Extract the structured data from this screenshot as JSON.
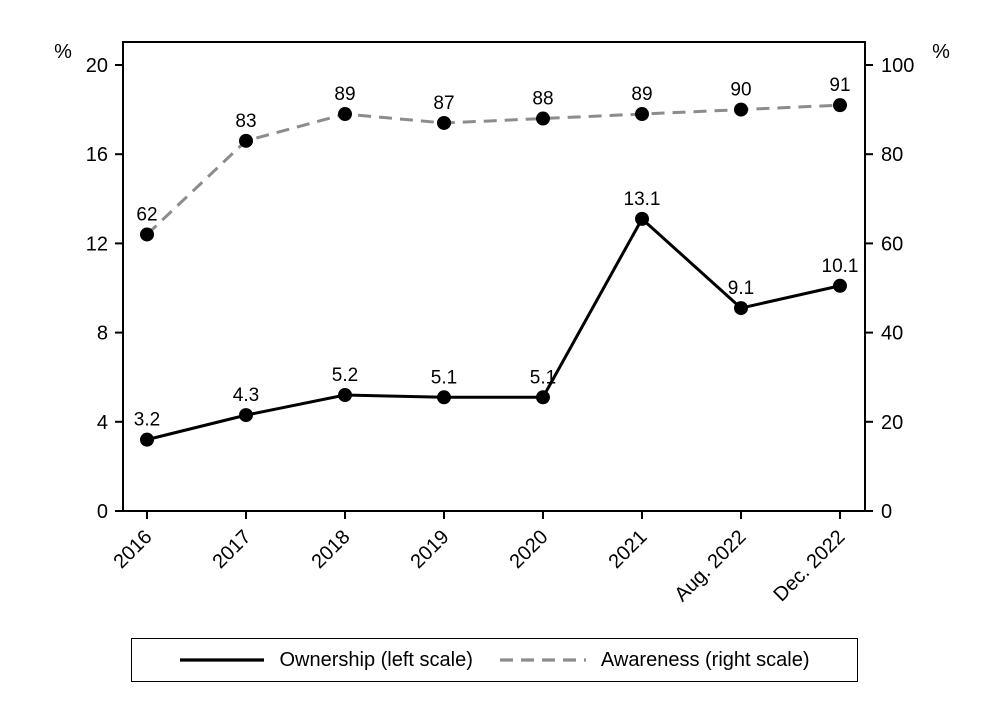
{
  "chart_data": {
    "type": "line",
    "title": "",
    "categories": [
      "2016",
      "2017",
      "2018",
      "2019",
      "2020",
      "2021",
      "Aug. 2022",
      "Dec. 2022"
    ],
    "series": [
      {
        "id": "ownership",
        "name": "Ownership (left scale)",
        "axis": "left",
        "style": "solid",
        "color": "#000000",
        "values": [
          3.2,
          4.3,
          5.2,
          5.1,
          5.1,
          13.1,
          9.1,
          10.1
        ]
      },
      {
        "id": "awareness",
        "name": "Awareness (right scale)",
        "axis": "right",
        "style": "dashed",
        "color": "#8c8c8c",
        "values": [
          62,
          83,
          89,
          87,
          88,
          89,
          90,
          91
        ]
      }
    ],
    "left_axis": {
      "unit": "%",
      "min": 0,
      "max": 20,
      "ticks": [
        0,
        4,
        8,
        12,
        16,
        20
      ]
    },
    "right_axis": {
      "unit": "%",
      "min": 0,
      "max": 100,
      "ticks": [
        0,
        20,
        40,
        60,
        80,
        100
      ]
    },
    "marker": {
      "shape": "circle",
      "color": "#000000"
    },
    "data_labels": true,
    "grid": false,
    "legend_position": "bottom"
  }
}
